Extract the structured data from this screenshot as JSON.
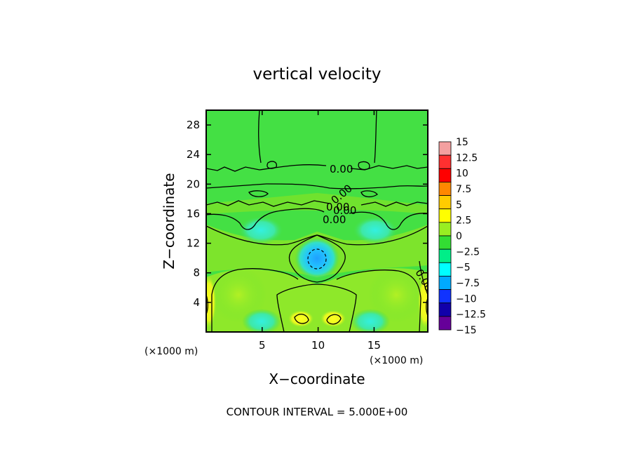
{
  "chart_data": {
    "type": "heatmap",
    "title": "vertical velocity",
    "xlabel": "X−coordinate",
    "ylabel": "Z−coordinate",
    "x_unit_left": "(×1000 m)",
    "x_unit_right": "(×1000 m)",
    "xlim": [
      0,
      19.8
    ],
    "ylim": [
      0,
      30
    ],
    "xticks": [
      5,
      10,
      15
    ],
    "yticks": [
      4,
      8,
      12,
      16,
      20,
      24,
      28
    ],
    "contour_labels": [
      "0.00",
      "0.00",
      "0.00",
      "0.00",
      "0.00",
      "0.00"
    ],
    "footer": "CONTOUR INTERVAL = 5.000E+00",
    "colorbar": {
      "levels": [
        "15",
        "12.5",
        "10",
        "7.5",
        "5",
        "2.5",
        "0",
        "−2.5",
        "−5",
        "−7.5",
        "−10",
        "−12.5",
        "−15"
      ],
      "colors": [
        "#f4a0a0",
        "#ff3030",
        "#ff0000",
        "#ff8800",
        "#ffcc00",
        "#ffff00",
        "#99ee22",
        "#33dd33",
        "#00ee88",
        "#00ffff",
        "#00aaff",
        "#1133ff",
        "#1100aa",
        "#660099"
      ]
    },
    "colors": {
      "background_field": "#44e044",
      "positive_region": "#a6ee24",
      "updraft_core": "#ffff22",
      "downdraft_core": "#22b8ff",
      "weak_downdraft": "#33e8b8"
    }
  }
}
